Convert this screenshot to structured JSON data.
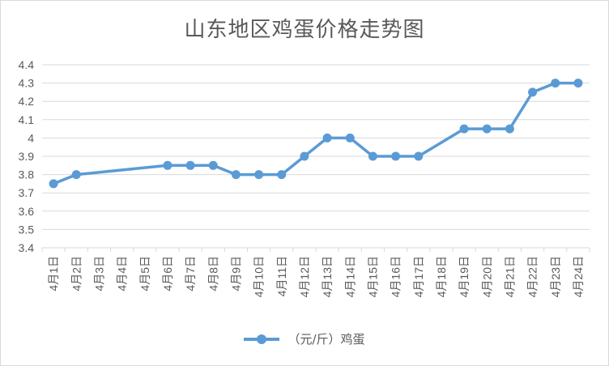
{
  "chart_data": {
    "type": "line",
    "title": "山东地区鸡蛋价格走势图",
    "categories": [
      "4月1日",
      "4月2日",
      "4月3日",
      "4月4日",
      "4月5日",
      "4月6日",
      "4月7日",
      "4月8日",
      "4月9日",
      "4月10日",
      "4月11日",
      "4月12日",
      "4月13日",
      "4月14日",
      "4月15日",
      "4月16日",
      "4月17日",
      "4月18日",
      "4月19日",
      "4月20日",
      "4月21日",
      "4月22日",
      "4月23日",
      "4月24日"
    ],
    "series": [
      {
        "name": "（元/斤）鸡蛋",
        "color": "#5b9bd5",
        "values": [
          3.75,
          3.8,
          null,
          null,
          null,
          3.85,
          3.85,
          3.85,
          3.8,
          3.8,
          3.8,
          3.9,
          4.0,
          4.0,
          3.9,
          3.9,
          3.9,
          null,
          4.05,
          4.05,
          4.05,
          4.25,
          4.3,
          4.3
        ]
      }
    ],
    "ylim": [
      3.4,
      4.4
    ],
    "ytick_labels": [
      "3.4",
      "3.5",
      "3.6",
      "3.7",
      "3.8",
      "3.9",
      "4",
      "4.1",
      "4.2",
      "4.3",
      "4.4"
    ],
    "xlabel": "",
    "ylabel": "",
    "grid": true,
    "legend": "bottom"
  }
}
